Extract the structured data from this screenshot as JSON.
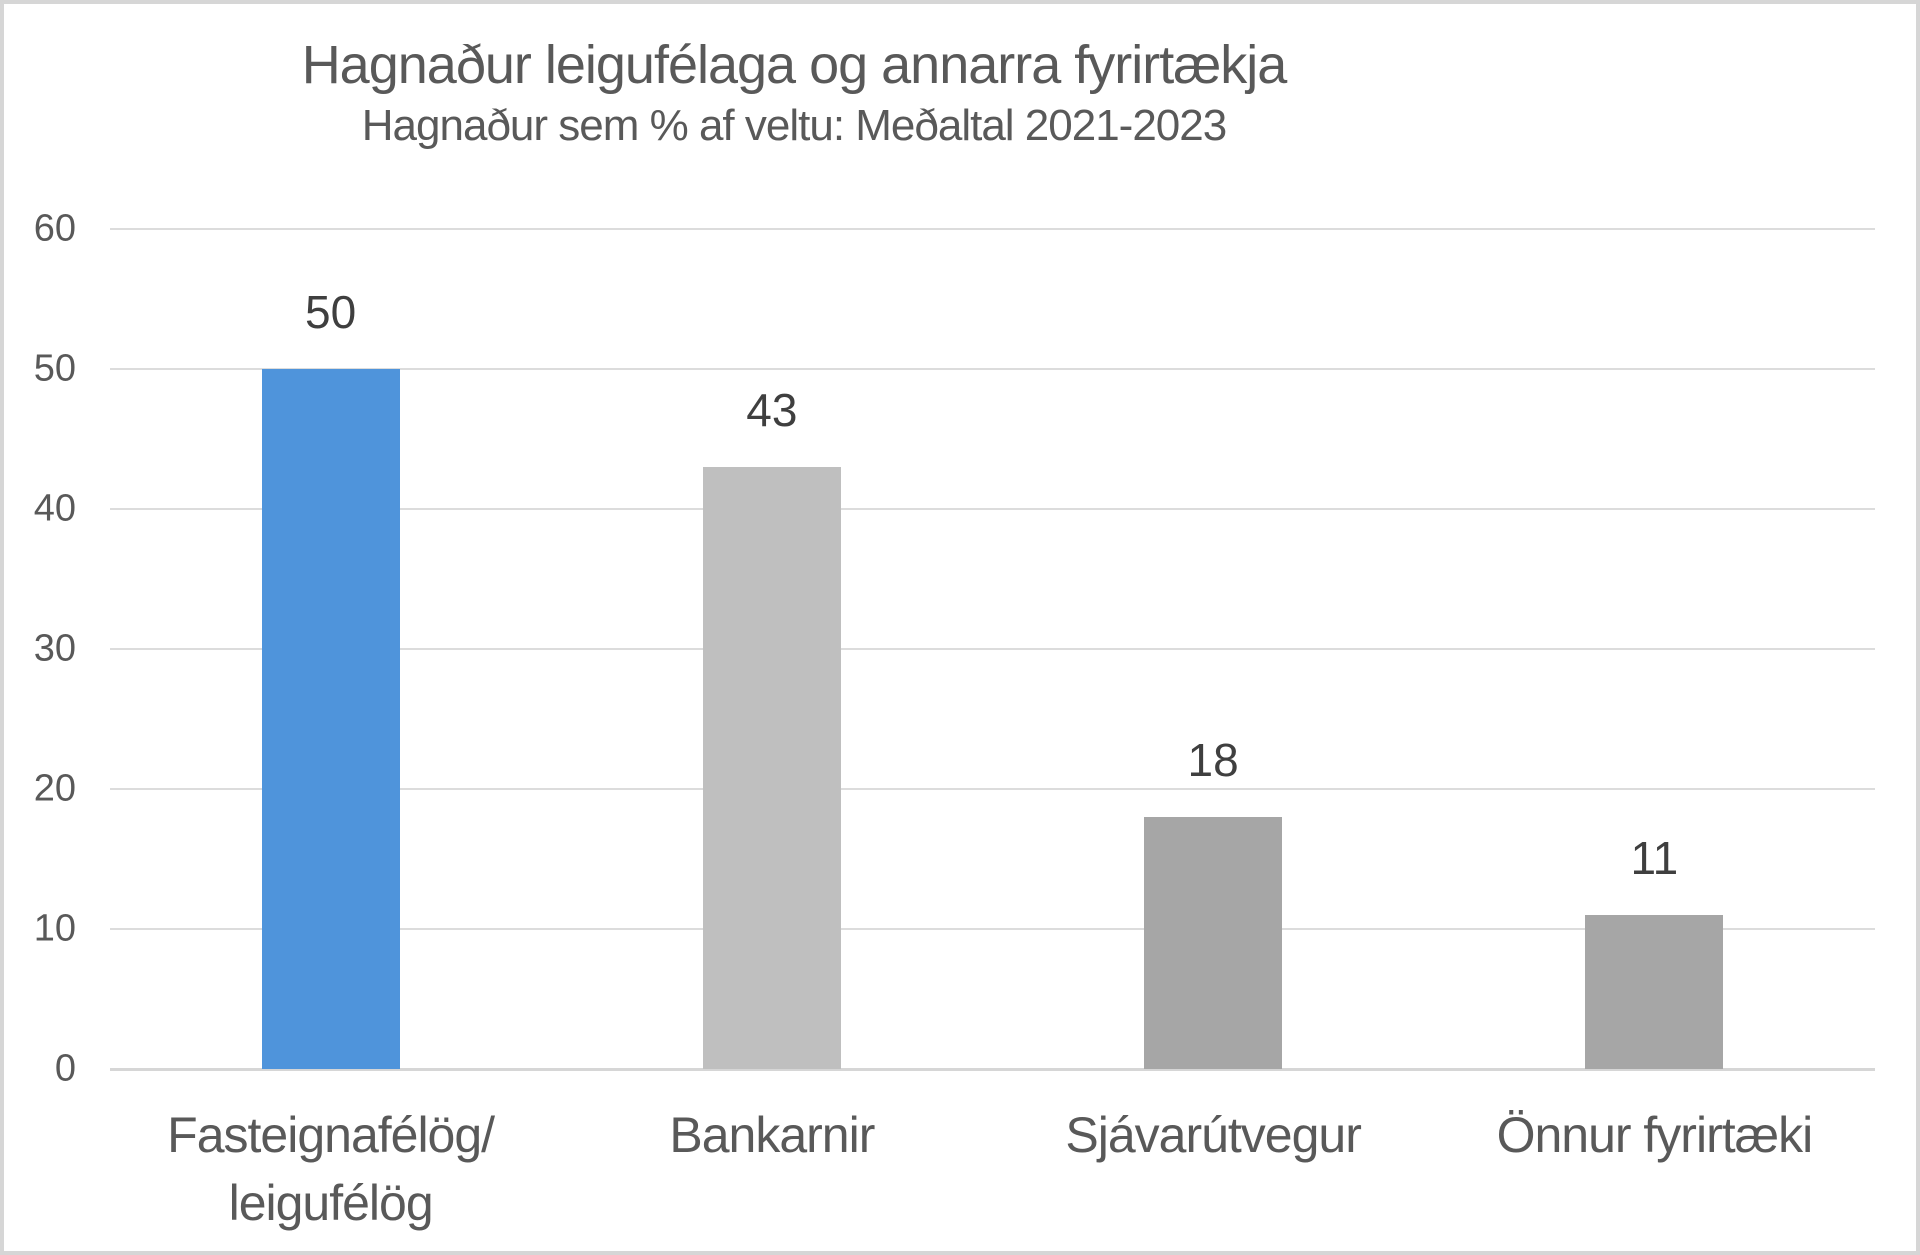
{
  "chart_data": {
    "type": "bar",
    "title": "Hagnaður leigufélaga og annarra fyrirtækja",
    "subtitle": "Hagnaður sem % af veltu: Meðaltal 2021-2023",
    "categories": [
      "Fasteignafélög/\nleigufélög",
      "Bankarnir",
      "Sjávarútvegur",
      "Önnur fyrirtæki"
    ],
    "values": [
      50,
      43,
      18,
      11
    ],
    "data_labels": [
      "50",
      "43",
      "18",
      "11"
    ],
    "bar_colors": [
      "#4f94db",
      "#bfbfbf",
      "#a6a6a6",
      "#a6a6a6"
    ],
    "xlabel": "",
    "ylabel": "",
    "ylim": [
      0,
      60
    ],
    "yticks": [
      0,
      10,
      20,
      30,
      40,
      50,
      60
    ],
    "grid": true,
    "legend_position": "none",
    "gridline_color": "#dcdcdc",
    "axis_text_color": "#595959",
    "value_label_color": "#3f3f3f",
    "background_color": "#ffffff",
    "border_color": "#d6d6d6"
  }
}
